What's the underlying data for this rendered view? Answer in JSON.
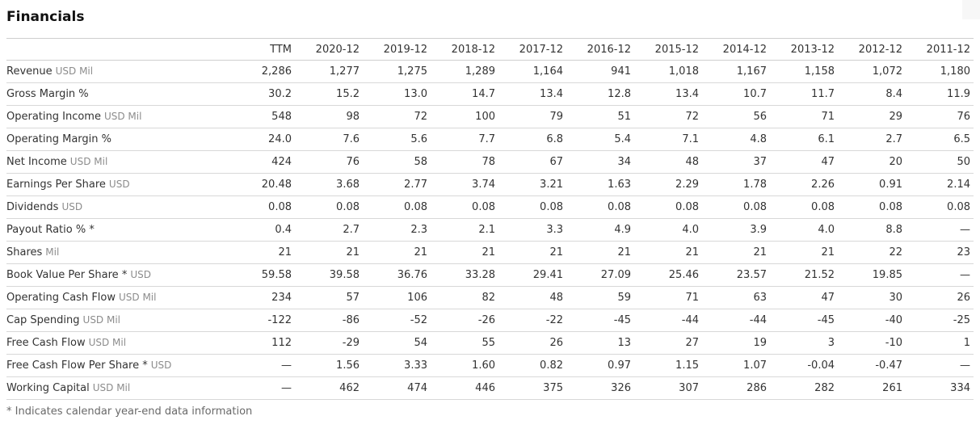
{
  "title": "Financials",
  "footnote": "* Indicates calendar year-end data information",
  "colors": {
    "text": "#333333",
    "unit_text": "#8c8c8c",
    "divider_line": "#d8d8d8",
    "footnote_text": "#696969"
  },
  "table": {
    "columns": [
      "TTM",
      "2020-12",
      "2019-12",
      "2018-12",
      "2017-12",
      "2016-12",
      "2015-12",
      "2014-12",
      "2013-12",
      "2012-12",
      "2011-12"
    ],
    "rows": [
      {
        "label": "Revenue",
        "unit": "USD Mil",
        "values": [
          "2,286",
          "1,277",
          "1,275",
          "1,289",
          "1,164",
          "941",
          "1,018",
          "1,167",
          "1,158",
          "1,072",
          "1,180"
        ]
      },
      {
        "label": "Gross Margin %",
        "unit": "",
        "values": [
          "30.2",
          "15.2",
          "13.0",
          "14.7",
          "13.4",
          "12.8",
          "13.4",
          "10.7",
          "11.7",
          "8.4",
          "11.9"
        ]
      },
      {
        "label": "Operating Income",
        "unit": "USD Mil",
        "values": [
          "548",
          "98",
          "72",
          "100",
          "79",
          "51",
          "72",
          "56",
          "71",
          "29",
          "76"
        ]
      },
      {
        "label": "Operating Margin %",
        "unit": "",
        "values": [
          "24.0",
          "7.6",
          "5.6",
          "7.7",
          "6.8",
          "5.4",
          "7.1",
          "4.8",
          "6.1",
          "2.7",
          "6.5"
        ]
      },
      {
        "label": "Net Income",
        "unit": "USD Mil",
        "values": [
          "424",
          "76",
          "58",
          "78",
          "67",
          "34",
          "48",
          "37",
          "47",
          "20",
          "50"
        ]
      },
      {
        "label": "Earnings Per Share",
        "unit": "USD",
        "values": [
          "20.48",
          "3.68",
          "2.77",
          "3.74",
          "3.21",
          "1.63",
          "2.29",
          "1.78",
          "2.26",
          "0.91",
          "2.14"
        ]
      },
      {
        "label": "Dividends",
        "unit": "USD",
        "values": [
          "0.08",
          "0.08",
          "0.08",
          "0.08",
          "0.08",
          "0.08",
          "0.08",
          "0.08",
          "0.08",
          "0.08",
          "0.08"
        ]
      },
      {
        "label": "Payout Ratio % *",
        "unit": "",
        "values": [
          "0.4",
          "2.7",
          "2.3",
          "2.1",
          "3.3",
          "4.9",
          "4.0",
          "3.9",
          "4.0",
          "8.8",
          "—"
        ]
      },
      {
        "label": "Shares",
        "unit": "Mil",
        "values": [
          "21",
          "21",
          "21",
          "21",
          "21",
          "21",
          "21",
          "21",
          "21",
          "22",
          "23"
        ]
      },
      {
        "label": "Book Value Per Share *",
        "unit": "USD",
        "values": [
          "59.58",
          "39.58",
          "36.76",
          "33.28",
          "29.41",
          "27.09",
          "25.46",
          "23.57",
          "21.52",
          "19.85",
          "—"
        ]
      },
      {
        "label": "Operating Cash Flow",
        "unit": "USD Mil",
        "values": [
          "234",
          "57",
          "106",
          "82",
          "48",
          "59",
          "71",
          "63",
          "47",
          "30",
          "26"
        ]
      },
      {
        "label": "Cap Spending",
        "unit": "USD Mil",
        "values": [
          "-122",
          "-86",
          "-52",
          "-26",
          "-22",
          "-45",
          "-44",
          "-44",
          "-45",
          "-40",
          "-25"
        ]
      },
      {
        "label": "Free Cash Flow",
        "unit": "USD Mil",
        "values": [
          "112",
          "-29",
          "54",
          "55",
          "26",
          "13",
          "27",
          "19",
          "3",
          "-10",
          "1"
        ]
      },
      {
        "label": "Free Cash Flow Per Share *",
        "unit": "USD",
        "values": [
          "—",
          "1.56",
          "3.33",
          "1.60",
          "0.82",
          "0.97",
          "1.15",
          "1.07",
          "-0.04",
          "-0.47",
          "—"
        ]
      },
      {
        "label": "Working Capital",
        "unit": "USD Mil",
        "values": [
          "—",
          "462",
          "474",
          "446",
          "375",
          "326",
          "307",
          "286",
          "282",
          "261",
          "334"
        ]
      }
    ]
  }
}
